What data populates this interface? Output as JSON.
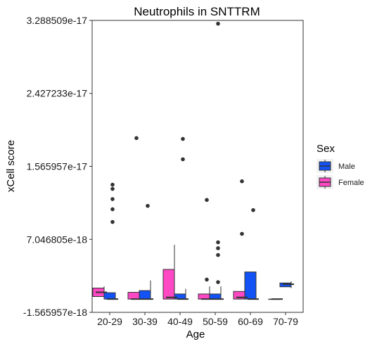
{
  "chart_data": {
    "type": "boxplot",
    "title": "Neutrophils in SNTTRM",
    "xlabel": "Age",
    "ylabel": "xCell score",
    "categories": [
      "20-29",
      "30-39",
      "40-49",
      "50-59",
      "60-69",
      "70-79"
    ],
    "yticks": [
      "-1.565957e-18",
      "7.046805e-18",
      "1.565957e-17",
      "2.427233e-17",
      "3.288509e-17"
    ],
    "ytick_values": [
      -1.565957e-18,
      7.046805e-18,
      1.565957e-17,
      2.427233e-17,
      3.288509e-17
    ],
    "ylim": [
      -1.565957e-18,
      3.288509e-17
    ],
    "grid": false,
    "legend": {
      "title": "Sex",
      "position": "right",
      "entries": [
        {
          "label": "Male",
          "color": "#1353F5"
        },
        {
          "label": "Female",
          "color": "#FF48C4"
        }
      ]
    },
    "series": [
      {
        "name": "Male",
        "color": "#1353F5",
        "boxes": [
          {
            "category": "20-29",
            "min": 0,
            "q1": 0,
            "median": 0,
            "q3": 7.5e-19,
            "max": 7.5e-19,
            "outliers": [
              1.3e-17,
              1.35e-17,
              1.06e-17,
              1.18e-17,
              9.1e-18
            ]
          },
          {
            "category": "30-39",
            "min": 0,
            "q1": 0,
            "median": 0,
            "q3": 1e-18,
            "max": 2.2e-18,
            "outliers": [
              1.1e-17
            ]
          },
          {
            "category": "40-49",
            "min": 0,
            "q1": 0,
            "median": 0,
            "q3": 6e-19,
            "max": 1.2e-18,
            "outliers": [
              1.89e-17,
              1.65e-17
            ]
          },
          {
            "category": "50-59",
            "min": 0,
            "q1": 0,
            "median": 0,
            "q3": 6e-19,
            "max": 1.5e-18,
            "outliers": [
              3.25e-17,
              6.7e-18,
              6e-18,
              5.2e-18,
              2e-18
            ]
          },
          {
            "category": "60-69",
            "min": 0,
            "q1": 0,
            "median": 0,
            "q3": 3.2e-18,
            "max": 3.2e-18,
            "outliers": [
              1.05e-17
            ]
          },
          {
            "category": "70-79",
            "min": 1.3e-18,
            "q1": 1.45e-18,
            "median": 1.75e-18,
            "q3": 1.9e-18,
            "max": 2.1e-18,
            "outliers": []
          }
        ]
      },
      {
        "name": "Female",
        "color": "#FF48C4",
        "boxes": [
          {
            "category": "20-29",
            "min": 0,
            "q1": 3e-19,
            "median": 8e-19,
            "q3": 1.3e-18,
            "max": 1.5e-18,
            "outliers": []
          },
          {
            "category": "30-39",
            "min": 0,
            "q1": 0,
            "median": 0,
            "q3": 8e-19,
            "max": 8e-19,
            "outliers": [
              1.9e-17
            ]
          },
          {
            "category": "40-49",
            "min": 0,
            "q1": 0,
            "median": 2e-19,
            "q3": 3.5e-18,
            "max": 6.4e-18,
            "outliers": []
          },
          {
            "category": "50-59",
            "min": 0,
            "q1": 0,
            "median": 0,
            "q3": 6e-19,
            "max": 1.5e-18,
            "outliers": [
              1.17e-17,
              2.3e-18
            ]
          },
          {
            "category": "60-69",
            "min": 0,
            "q1": 0,
            "median": 2e-19,
            "q3": 9e-19,
            "max": 1.5e-18,
            "outliers": [
              1.39e-17,
              7.7e-18
            ]
          },
          {
            "category": "70-79",
            "min": 0,
            "q1": 0,
            "median": 0,
            "q3": 0,
            "max": 0,
            "outliers": []
          }
        ]
      }
    ]
  }
}
